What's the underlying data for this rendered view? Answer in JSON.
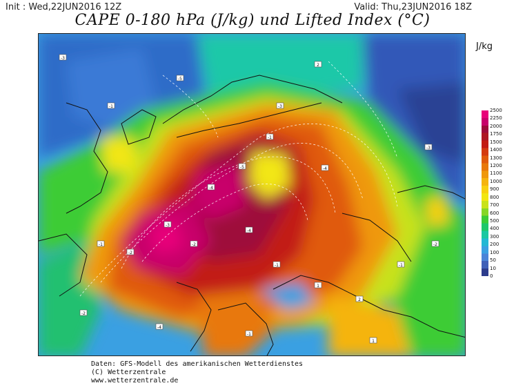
{
  "header": {
    "init": "Init : Wed,22JUN2016 12Z",
    "valid": "Valid: Thu,23JUN2016 18Z",
    "title": "CAPE 0-180 hPa (J/kg) und Lifted Index (°C)"
  },
  "legend": {
    "unit": "J/kg",
    "levels": [
      "2500",
      "2250",
      "2000",
      "1750",
      "1500",
      "1400",
      "1300",
      "1200",
      "1100",
      "1000",
      "900",
      "800",
      "700",
      "600",
      "500",
      "400",
      "300",
      "200",
      "100",
      "50",
      "10",
      "0"
    ],
    "colors": [
      "#e8007a",
      "#c8006a",
      "#9e0a3a",
      "#ad1522",
      "#c21c14",
      "#d43a10",
      "#e05a0c",
      "#e8780a",
      "#ef980c",
      "#f5b40e",
      "#f8d010",
      "#f2e612",
      "#c8e21a",
      "#86d626",
      "#3ccc36",
      "#1ec86a",
      "#1ac8a2",
      "#22b8d4",
      "#3aa0e2",
      "#4a84d8",
      "#3f5fb8",
      "#2c3c8c"
    ]
  },
  "footer": {
    "line1": "Daten: GFS-Modell des amerikanischen Wetterdienstes",
    "line2": "(C) Wetterzentrale",
    "line3": "www.wetterzentrale.de"
  },
  "lifted_index_boxes": [
    {
      "id": "li-1",
      "label": "-1"
    },
    {
      "id": "li-2",
      "label": "-2"
    },
    {
      "id": "li-3",
      "label": "-3"
    },
    {
      "id": "li-4",
      "label": "-4"
    },
    {
      "id": "li-5",
      "label": "-5"
    },
    {
      "id": "li-6",
      "label": "-1"
    },
    {
      "id": "li-7",
      "label": "-3"
    },
    {
      "id": "li-8",
      "label": "-2"
    },
    {
      "id": "li-9",
      "label": "-4"
    },
    {
      "id": "li-10",
      "label": "-1"
    },
    {
      "id": "li-11",
      "label": "1"
    },
    {
      "id": "li-12",
      "label": "2"
    }
  ]
}
